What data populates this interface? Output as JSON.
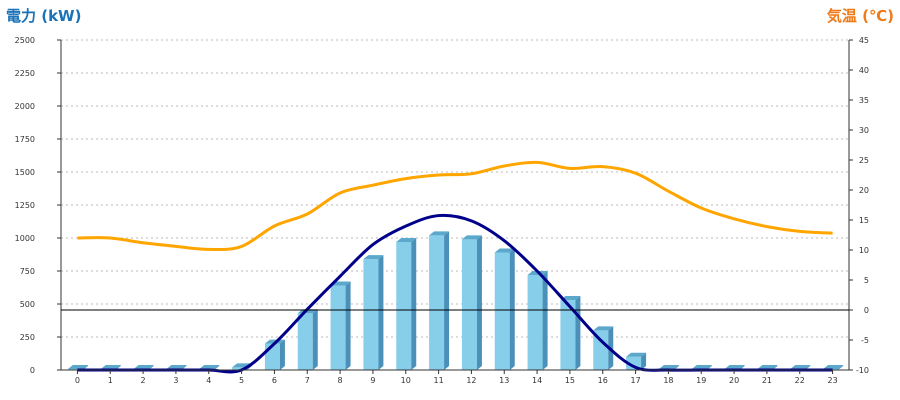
{
  "chart_data": {
    "type": "bar",
    "title": "",
    "xlabel": "",
    "ylabel": "電力 (kW)",
    "y2label": "気温 (℃)",
    "categories": [
      "0",
      "1",
      "2",
      "3",
      "4",
      "5",
      "6",
      "7",
      "8",
      "9",
      "10",
      "11",
      "12",
      "13",
      "14",
      "15",
      "16",
      "17",
      "18",
      "19",
      "20",
      "21",
      "22",
      "23"
    ],
    "ylim": [
      0,
      2500
    ],
    "y2lim": [
      -10,
      45
    ],
    "yticks": [
      "0",
      "250",
      "500",
      "750",
      "1000",
      "1250",
      "1500",
      "1750",
      "2000",
      "2250",
      "2500"
    ],
    "y2ticks": [
      "-10",
      "-5",
      "0",
      "5",
      "10",
      "15",
      "20",
      "25",
      "30",
      "35",
      "40",
      "45"
    ],
    "grid": true,
    "series": [
      {
        "type": "bar",
        "axis": "left",
        "values": [
          0,
          0,
          0,
          0,
          0,
          20,
          200,
          430,
          640,
          840,
          970,
          1020,
          990,
          890,
          720,
          530,
          300,
          100,
          0,
          0,
          0,
          0,
          0,
          0
        ]
      },
      {
        "type": "line",
        "axis": "left",
        "values": [
          0,
          0,
          0,
          0,
          0,
          0,
          200,
          460,
          710,
          950,
          1090,
          1170,
          1130,
          980,
          750,
          480,
          210,
          20,
          0,
          0,
          0,
          0,
          0,
          0
        ]
      },
      {
        "type": "line",
        "axis": "right",
        "values": [
          12,
          12,
          11.2,
          10.6,
          10.1,
          10.6,
          14,
          16,
          19.5,
          20.8,
          21.9,
          22.5,
          22.7,
          24,
          24.6,
          23.6,
          23.9,
          22.8,
          19.8,
          17,
          15.2,
          13.9,
          13.1,
          12.8
        ]
      }
    ],
    "colors": {
      "bar_front": "#87ceeb",
      "bar_top": "#5ba8cc",
      "bar_side": "#4b90b8",
      "power_line": "#00008b",
      "temp_line": "#ffa500",
      "grid": "#bbbbbb",
      "axis": "#333333",
      "zero_line": "#000000"
    }
  }
}
